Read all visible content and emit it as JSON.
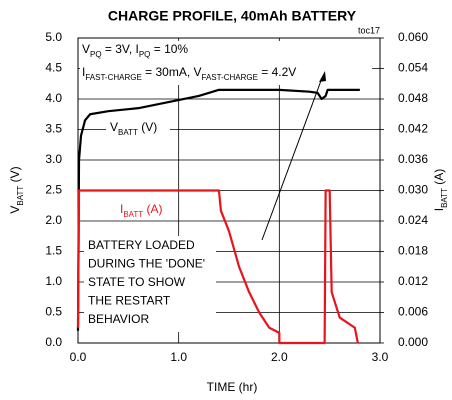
{
  "chart_data": {
    "type": "line",
    "title": "CHARGE PROFILE, 40mAh BATTERY",
    "code": "toc17",
    "xlabel": "TIME (hr)",
    "ylabel": [
      {
        "text": "V"
      },
      {
        "text": "BATT",
        "sub": true
      },
      {
        "text": " (V)"
      }
    ],
    "y2label": [
      {
        "text": "I"
      },
      {
        "text": "BATT",
        "sub": true
      },
      {
        "text": " (A)"
      }
    ],
    "xlim": [
      0,
      3
    ],
    "xticks": [
      {
        "value": 0,
        "label": "0.0"
      },
      {
        "value": 1,
        "label": "1.0"
      },
      {
        "value": 2,
        "label": "2.0"
      },
      {
        "value": 3,
        "label": "3.0"
      }
    ],
    "ylim": [
      0,
      5
    ],
    "yticks": [
      {
        "value": 0,
        "label": "0.0"
      },
      0.5,
      {
        "value": 1,
        "label": "1.0"
      },
      1.5,
      {
        "value": 2,
        "label": "2.0"
      },
      2.5,
      {
        "value": 3,
        "label": "3.0"
      },
      3.5,
      {
        "value": 4,
        "label": "4.0"
      },
      4.5,
      {
        "value": 5,
        "label": "5.0"
      }
    ],
    "y2lim": [
      0,
      0.06
    ],
    "y2ticks": [
      {
        "value": 0,
        "label": "0.000"
      },
      0.006,
      0.012,
      0.018,
      0.024,
      {
        "value": 0.03,
        "label": "0.030"
      },
      0.036,
      0.042,
      0.048,
      0.054,
      {
        "value": 0.06,
        "label": "0.060"
      }
    ],
    "grid": true,
    "annotations": [
      [
        {
          "text": "V"
        },
        {
          "text": "PQ",
          "sub": true
        },
        {
          "text": " = 3V, I"
        },
        {
          "text": "PQ",
          "sub": true
        },
        {
          "text": " = 10%"
        }
      ],
      [
        {
          "text": "I"
        },
        {
          "text": "FAST-CHARGE",
          "sub": true
        },
        {
          "text": " = 30mA, V"
        },
        {
          "text": "FAST-CHARGE",
          "sub": true
        },
        {
          "text": " = 4.2V"
        }
      ]
    ],
    "note": [
      "BATTERY LOADED",
      "DURING THE 'DONE'",
      "STATE TO SHOW",
      "THE RESTART",
      "BEHAVIOR"
    ],
    "series": [
      {
        "name": [
          {
            "text": "V"
          },
          {
            "text": "BATT",
            "sub": true
          },
          {
            "text": " (V)"
          }
        ],
        "color": "#000000",
        "x": [
          0,
          0.01,
          0.03,
          0.07,
          0.12,
          0.3,
          0.6,
          0.9,
          1.2,
          1.4,
          2.0,
          2.3,
          2.38,
          2.42,
          2.46,
          2.48,
          2.8
        ],
        "values": [
          0.2,
          3.0,
          3.4,
          3.65,
          3.75,
          3.8,
          3.85,
          3.95,
          4.05,
          4.15,
          4.15,
          4.12,
          4.1,
          4.0,
          4.05,
          4.15,
          4.15
        ]
      },
      {
        "name": [
          {
            "text": "I"
          },
          {
            "text": "BATT",
            "sub": true
          },
          {
            "text": " (A)"
          }
        ],
        "color": "#e8141c",
        "axis": "y2",
        "x": [
          0,
          0.01,
          1.4,
          1.42,
          1.5,
          1.6,
          1.7,
          1.8,
          1.9,
          2.0,
          2.0,
          2.45,
          2.46,
          2.5,
          2.52,
          2.6,
          2.75,
          2.78
        ],
        "values": [
          0.003,
          0.03,
          0.03,
          0.026,
          0.022,
          0.015,
          0.01,
          0.006,
          0.003,
          0.002,
          0,
          0,
          0.03,
          0.03,
          0.01,
          0.005,
          0.003,
          0
        ]
      }
    ]
  }
}
